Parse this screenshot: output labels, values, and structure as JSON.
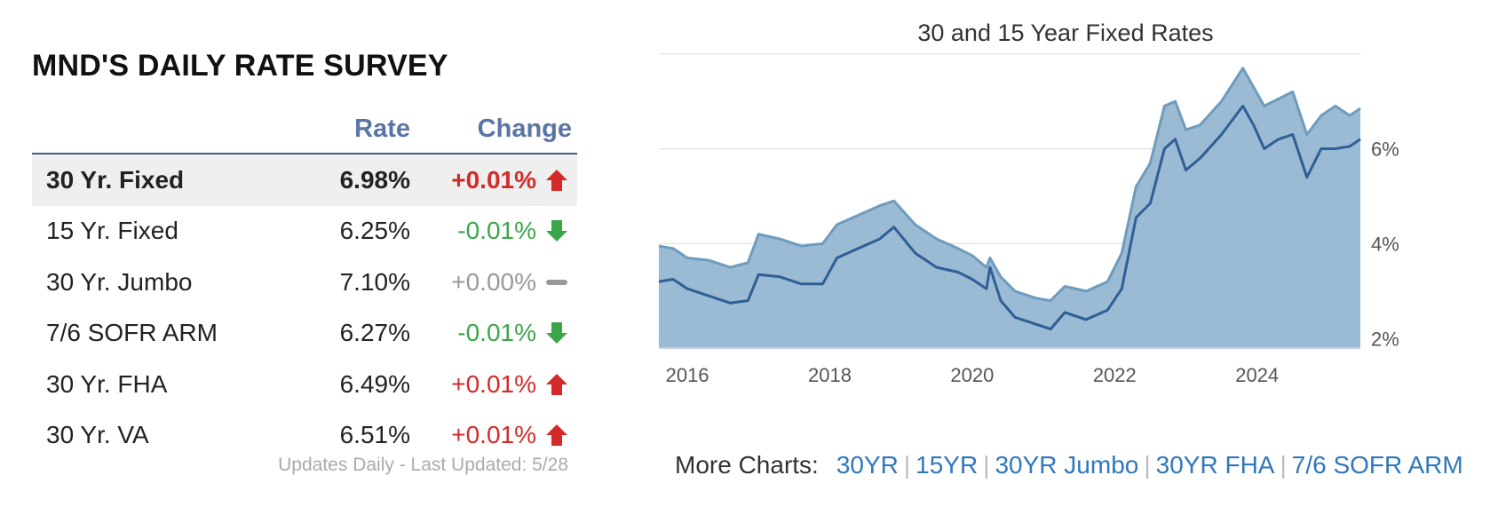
{
  "survey": {
    "title_normal": "MND'S ",
    "title_bold": "DAILY RATE SURVEY",
    "col_rate": "Rate",
    "col_change": "Change",
    "rows": [
      {
        "name": "30 Yr. Fixed",
        "rate": "6.98%",
        "change": "+0.01%",
        "direction": "up"
      },
      {
        "name": "15 Yr. Fixed",
        "rate": "6.25%",
        "change": "-0.01%",
        "direction": "down"
      },
      {
        "name": "30 Yr. Jumbo",
        "rate": "7.10%",
        "change": "+0.00%",
        "direction": "flat"
      },
      {
        "name": "7/6 SOFR ARM",
        "rate": "6.27%",
        "change": "-0.01%",
        "direction": "down"
      },
      {
        "name": "30 Yr. FHA",
        "rate": "6.49%",
        "change": "+0.01%",
        "direction": "up"
      },
      {
        "name": "30 Yr. VA",
        "rate": "6.51%",
        "change": "+0.01%",
        "direction": "up"
      }
    ],
    "updated": "Updates Daily - Last Updated: 5/28"
  },
  "more_charts": {
    "label": "More Charts:",
    "links": [
      "30YR",
      "15YR",
      "30YR Jumbo",
      "30YR FHA",
      "7/6 SOFR ARM"
    ]
  },
  "colors": {
    "up": "#d42a2a",
    "down": "#3aa64a",
    "flat": "#999999",
    "header_blue": "#5a74a6",
    "link_blue": "#2f77bd",
    "area_fill": "#9bbad3",
    "line_30yr": "#6d9cbe",
    "line_15yr": "#2e5f96"
  },
  "chart_data": {
    "type": "area",
    "title": "30 and 15 Year Fixed Rates",
    "xlabel": "",
    "ylabel": "",
    "x_ticks": [
      "2016",
      "2018",
      "2020",
      "2022",
      "2024"
    ],
    "y_ticks": [
      "2%",
      "4%",
      "6%"
    ],
    "xlim": [
      2015.6,
      2025.45
    ],
    "ylim": [
      1.8,
      7.75
    ],
    "grid": true,
    "y_axis_side": "right",
    "x": [
      2015.6,
      2015.8,
      2016.0,
      2016.3,
      2016.6,
      2016.85,
      2017.0,
      2017.3,
      2017.6,
      2017.9,
      2018.1,
      2018.4,
      2018.7,
      2018.9,
      2019.2,
      2019.5,
      2019.8,
      2020.0,
      2020.2,
      2020.25,
      2020.4,
      2020.6,
      2020.9,
      2021.1,
      2021.3,
      2021.6,
      2021.9,
      2022.1,
      2022.3,
      2022.5,
      2022.7,
      2022.85,
      2023.0,
      2023.2,
      2023.5,
      2023.8,
      2023.95,
      2024.1,
      2024.3,
      2024.5,
      2024.7,
      2024.9,
      2025.1,
      2025.3,
      2025.45
    ],
    "series": [
      {
        "values": [
          3.95,
          3.9,
          3.7,
          3.65,
          3.5,
          3.6,
          4.2,
          4.1,
          3.95,
          4.0,
          4.4,
          4.6,
          4.8,
          4.9,
          4.4,
          4.1,
          3.9,
          3.75,
          3.5,
          3.7,
          3.3,
          3.0,
          2.85,
          2.8,
          3.1,
          3.0,
          3.2,
          3.8,
          5.2,
          5.7,
          6.9,
          7.0,
          6.4,
          6.5,
          7.0,
          7.7,
          7.3,
          6.9,
          7.05,
          7.2,
          6.3,
          6.7,
          6.9,
          6.7,
          6.85
        ]
      },
      {
        "values": [
          3.2,
          3.25,
          3.05,
          2.9,
          2.75,
          2.8,
          3.35,
          3.3,
          3.15,
          3.15,
          3.7,
          3.9,
          4.1,
          4.35,
          3.8,
          3.5,
          3.4,
          3.25,
          3.05,
          3.5,
          2.8,
          2.45,
          2.3,
          2.2,
          2.55,
          2.4,
          2.6,
          3.05,
          4.55,
          4.85,
          6.0,
          6.2,
          5.55,
          5.8,
          6.3,
          6.9,
          6.5,
          6.0,
          6.2,
          6.3,
          5.4,
          6.0,
          6.0,
          6.05,
          6.2
        ]
      }
    ]
  }
}
